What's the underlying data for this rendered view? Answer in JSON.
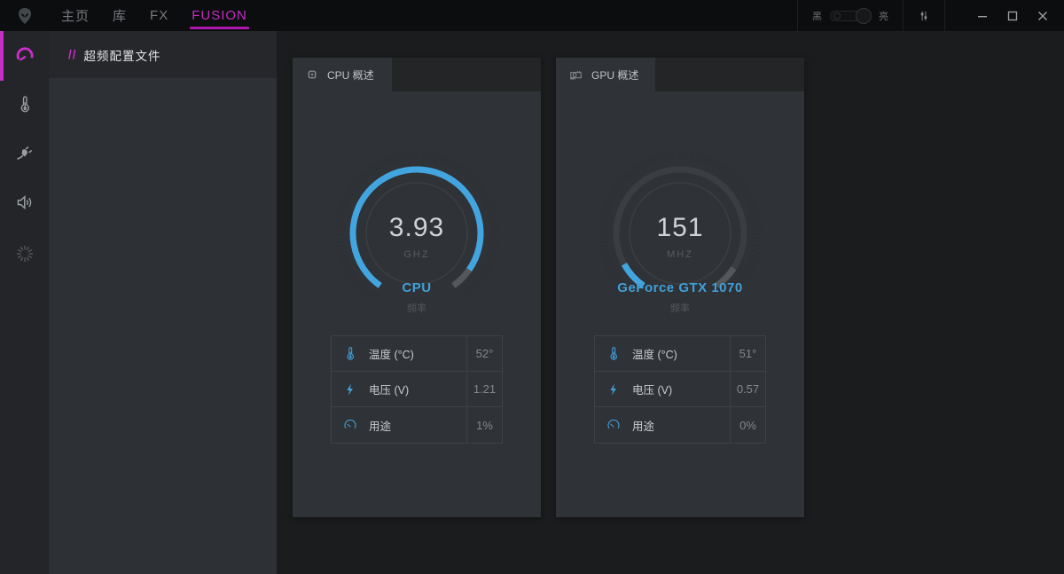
{
  "titlebar": {
    "nav": [
      {
        "label": "主页",
        "active": false
      },
      {
        "label": "库",
        "active": false
      },
      {
        "label": "FX",
        "active": false
      },
      {
        "label": "FUSION",
        "active": true
      }
    ],
    "theme_toggle": {
      "left_label": "黑",
      "right_label": "亮"
    }
  },
  "sidebar": {
    "items": [
      {
        "icon": "speedometer-icon",
        "active": true
      },
      {
        "icon": "thermometer-icon",
        "active": false
      },
      {
        "icon": "power-plug-icon",
        "active": false
      },
      {
        "icon": "speaker-icon",
        "active": false
      },
      {
        "icon": "sun-burst-icon",
        "active": false
      }
    ]
  },
  "panel": {
    "title_prefix": "//",
    "title": "超频配置文件"
  },
  "cards": {
    "cpu": {
      "tab_label": "CPU 概述",
      "gauge": {
        "value": "3.93",
        "unit": "GHZ",
        "fraction": 0.93
      },
      "name": "CPU",
      "subtitle": "频率",
      "stats": [
        {
          "icon": "thermometer-icon",
          "label": "温度 (°C)",
          "value": "52°"
        },
        {
          "icon": "bolt-icon",
          "label": "电压 (V)",
          "value": "1.21"
        },
        {
          "icon": "gauge-icon",
          "label": "用途",
          "value": "1%"
        }
      ]
    },
    "gpu": {
      "tab_label": "GPU 概述",
      "gauge": {
        "value": "151",
        "unit": "MHZ",
        "fraction": 0.09
      },
      "name": "GeForce GTX 1070",
      "subtitle": "频率",
      "stats": [
        {
          "icon": "thermometer-icon",
          "label": "温度 (°C)",
          "value": "51°"
        },
        {
          "icon": "bolt-icon",
          "label": "电压 (V)",
          "value": "0.57"
        },
        {
          "icon": "gauge-icon",
          "label": "用途",
          "value": "0%"
        }
      ]
    }
  },
  "colors": {
    "magenta": "#c32ec3",
    "blue": "#42a5e0",
    "gauge_track": "#3a3d41",
    "gauge_tip": "#54585d"
  }
}
